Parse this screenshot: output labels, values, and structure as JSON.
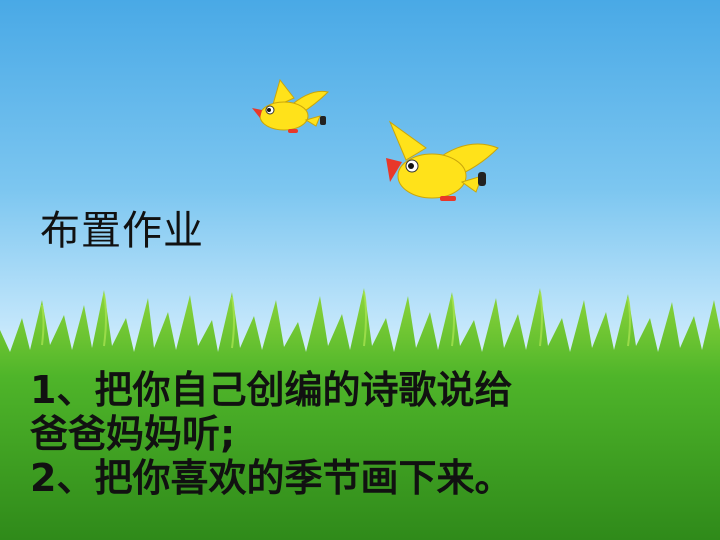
{
  "slide": {
    "title": "布置作业",
    "tasks": [
      {
        "line1": "1、把你自己创编的诗歌说给",
        "line2": "爸爸妈妈听;"
      },
      {
        "line1": "2、把你喜欢的季节画下来。"
      }
    ],
    "colors": {
      "sky_top": "#49a9e6",
      "grass": "#3e9e22",
      "grass_light": "#8fd63c",
      "bird_body": "#ffe21a",
      "bird_beak": "#e8382a"
    },
    "icons": [
      "bird-icon",
      "grass-illustration"
    ]
  }
}
